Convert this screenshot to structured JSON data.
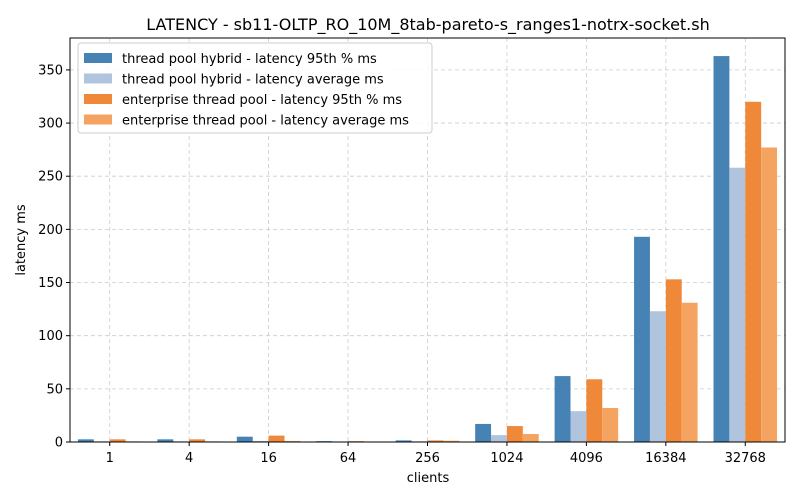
{
  "chart_data": {
    "type": "bar",
    "title": "LATENCY - sb11-OLTP_RO_10M_8tab-pareto-s_ranges1-notrx-socket.sh",
    "xlabel": "clients",
    "ylabel": "latency ms",
    "categories": [
      "1",
      "4",
      "16",
      "64",
      "256",
      "1024",
      "4096",
      "16384",
      "32768"
    ],
    "ylim": [
      0,
      380
    ],
    "yticks": [
      0,
      50,
      100,
      150,
      200,
      250,
      300,
      350
    ],
    "grid": true,
    "legend_position": "top-left",
    "series": [
      {
        "name": "thread pool hybrid - latency 95th % ms",
        "color": "#4682b4",
        "values": [
          2.5,
          2.5,
          5.0,
          0.8,
          1.5,
          17.0,
          62.0,
          193.0,
          363.0
        ]
      },
      {
        "name": "thread pool hybrid - latency average ms",
        "color": "#b0c4de",
        "values": [
          0.6,
          0.6,
          1.0,
          0.3,
          0.6,
          6.5,
          29.0,
          123.0,
          258.0
        ]
      },
      {
        "name": "enterprise thread pool - latency 95th % ms",
        "color": "#f0883a",
        "values": [
          2.5,
          2.5,
          6.0,
          0.8,
          1.5,
          15.0,
          59.0,
          153.0,
          320.0
        ]
      },
      {
        "name": "enterprise thread pool - latency average ms",
        "color": "#f4a460",
        "values": [
          0.6,
          0.6,
          1.0,
          0.3,
          1.2,
          7.5,
          32.0,
          131.0,
          277.0
        ]
      }
    ]
  }
}
